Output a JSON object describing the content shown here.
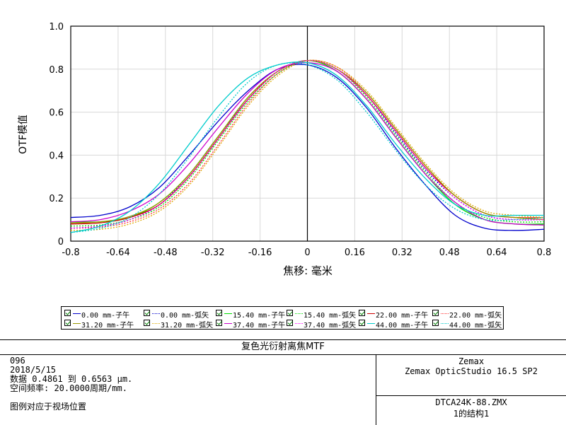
{
  "chart_data": {
    "type": "line",
    "xlabel": "焦移: 毫米",
    "ylabel": "OTF模值",
    "xlim": [
      -0.8,
      0.8
    ],
    "ylim": [
      0,
      1.0
    ],
    "x_ticks": [
      "-0.8",
      "-0.64",
      "-0.48",
      "-0.32",
      "-0.16",
      "0",
      "0.16",
      "0.32",
      "0.48",
      "0.64",
      "0.8"
    ],
    "y_ticks": [
      "0",
      "0.2",
      "0.4",
      "0.6",
      "0.8",
      "1.0"
    ],
    "grid": true,
    "x": [
      -0.8,
      -0.7,
      -0.6,
      -0.5,
      -0.4,
      -0.3,
      -0.2,
      -0.1,
      0.0,
      0.1,
      0.2,
      0.3,
      0.4,
      0.5,
      0.6,
      0.7,
      0.8
    ],
    "series": [
      {
        "name": "0.00 mm-子午",
        "color": "#0000cc",
        "style": "solid",
        "values": [
          0.11,
          0.12,
          0.16,
          0.25,
          0.4,
          0.56,
          0.7,
          0.8,
          0.82,
          0.76,
          0.62,
          0.43,
          0.26,
          0.12,
          0.06,
          0.05,
          0.055
        ]
      },
      {
        "name": "0.00 mm-弧矢",
        "color": "#0000cc",
        "style": "dotted",
        "values": [
          0.06,
          0.07,
          0.1,
          0.17,
          0.31,
          0.49,
          0.66,
          0.79,
          0.84,
          0.8,
          0.68,
          0.5,
          0.33,
          0.2,
          0.12,
          0.1,
          0.1
        ]
      },
      {
        "name": "15.40 mm-子午",
        "color": "#00dd00",
        "style": "solid",
        "values": [
          0.09,
          0.09,
          0.11,
          0.18,
          0.31,
          0.49,
          0.67,
          0.79,
          0.84,
          0.79,
          0.66,
          0.48,
          0.31,
          0.17,
          0.1,
          0.08,
          0.08
        ]
      },
      {
        "name": "15.40 mm-弧矢",
        "color": "#00dd00",
        "style": "dotted",
        "values": [
          0.07,
          0.075,
          0.1,
          0.16,
          0.29,
          0.47,
          0.65,
          0.78,
          0.84,
          0.8,
          0.67,
          0.49,
          0.32,
          0.18,
          0.11,
          0.09,
          0.09
        ]
      },
      {
        "name": "22.00 mm-子午",
        "color": "#cc0000",
        "style": "solid",
        "values": [
          0.08,
          0.085,
          0.11,
          0.17,
          0.3,
          0.48,
          0.66,
          0.79,
          0.84,
          0.8,
          0.68,
          0.51,
          0.34,
          0.21,
          0.13,
          0.11,
          0.11
        ]
      },
      {
        "name": "22.00 mm-弧矢",
        "color": "#ff3333",
        "style": "dotted",
        "values": [
          0.06,
          0.065,
          0.09,
          0.15,
          0.27,
          0.45,
          0.64,
          0.78,
          0.84,
          0.81,
          0.69,
          0.52,
          0.35,
          0.21,
          0.13,
          0.11,
          0.11
        ]
      },
      {
        "name": "31.20 mm-子午",
        "color": "#999900",
        "style": "solid",
        "values": [
          0.085,
          0.09,
          0.115,
          0.18,
          0.31,
          0.49,
          0.67,
          0.79,
          0.84,
          0.8,
          0.69,
          0.52,
          0.35,
          0.21,
          0.13,
          0.11,
          0.1
        ]
      },
      {
        "name": "31.20 mm-弧矢",
        "color": "#ddaa00",
        "style": "dotted",
        "values": [
          0.05,
          0.055,
          0.08,
          0.14,
          0.26,
          0.44,
          0.63,
          0.77,
          0.84,
          0.81,
          0.7,
          0.53,
          0.36,
          0.22,
          0.14,
          0.12,
          0.11
        ]
      },
      {
        "name": "37.40 mm-子午",
        "color": "#cc00cc",
        "style": "solid",
        "values": [
          0.09,
          0.1,
          0.14,
          0.22,
          0.36,
          0.53,
          0.69,
          0.8,
          0.83,
          0.79,
          0.66,
          0.48,
          0.31,
          0.18,
          0.1,
          0.08,
          0.075
        ]
      },
      {
        "name": "37.40 mm-弧矢",
        "color": "#ff00ff",
        "style": "dotted",
        "values": [
          0.06,
          0.07,
          0.1,
          0.17,
          0.3,
          0.48,
          0.66,
          0.79,
          0.84,
          0.8,
          0.68,
          0.51,
          0.34,
          0.2,
          0.12,
          0.1,
          0.1
        ]
      },
      {
        "name": "44.00 mm-子午",
        "color": "#00cccc",
        "style": "solid",
        "values": [
          0.04,
          0.07,
          0.14,
          0.27,
          0.45,
          0.63,
          0.76,
          0.82,
          0.83,
          0.77,
          0.63,
          0.45,
          0.29,
          0.17,
          0.12,
          0.12,
          0.12
        ]
      },
      {
        "name": "44.00 mm-弧矢",
        "color": "#00cccc",
        "style": "dotted",
        "values": [
          0.04,
          0.06,
          0.11,
          0.22,
          0.39,
          0.58,
          0.74,
          0.82,
          0.82,
          0.75,
          0.6,
          0.42,
          0.26,
          0.15,
          0.1,
          0.1,
          0.11
        ]
      }
    ]
  },
  "footer": {
    "title": "复色光衍射离焦MTF",
    "left_lines": [
      "096",
      "2018/5/15",
      "数据 0.4861 到 0.6563 μm.",
      "空间频率: 20.0000周期/mm."
    ],
    "left_note": "图例对应于视场位置",
    "right_top": [
      "Zemax",
      "Zemax OpticStudio 16.5 SP2"
    ],
    "right_bottom": [
      "DTCA24K-88.ZMX",
      "1的结构1"
    ]
  }
}
